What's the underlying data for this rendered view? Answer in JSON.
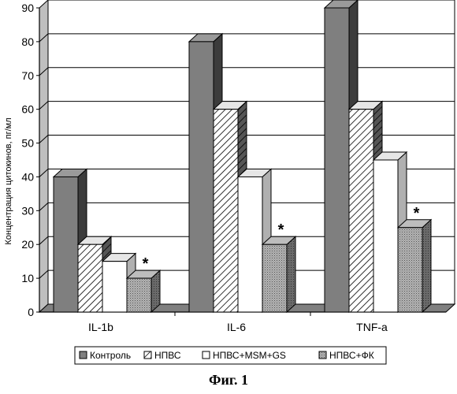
{
  "figure_caption": "Фиг. 1",
  "chart_data": {
    "type": "bar",
    "three_d": true,
    "title": "",
    "xlabel": "",
    "ylabel": "Концентрация цитокинов, пг/мл",
    "ylim": [
      0,
      90
    ],
    "yticks": [
      0,
      10,
      20,
      30,
      40,
      50,
      60,
      70,
      80,
      90
    ],
    "grid": true,
    "legend_position": "bottom",
    "categories": [
      "IL-1b",
      "IL-6",
      "TNF-a"
    ],
    "series": [
      {
        "name": "Контроль",
        "values": [
          40,
          80,
          90
        ],
        "fill": "#7f7f7f",
        "pattern": "solid"
      },
      {
        "name": "НПВС",
        "values": [
          20,
          60,
          60
        ],
        "fill": "#ffffff",
        "pattern": "hatch"
      },
      {
        "name": "НПВС+MSM+GS",
        "values": [
          15,
          40,
          45
        ],
        "fill": "#ffffff",
        "pattern": "solid"
      },
      {
        "name": "НПВС+ФК",
        "values": [
          10,
          20,
          25
        ],
        "fill": "#a8a8a8",
        "pattern": "dots"
      }
    ],
    "annotations": [
      {
        "text": "*",
        "category": "IL-1b",
        "series": "НПВС+ФК"
      },
      {
        "text": "*",
        "category": "IL-6",
        "series": "НПВС+ФК"
      },
      {
        "text": "*",
        "category": "TNF-a",
        "series": "НПВС+ФК"
      }
    ]
  }
}
